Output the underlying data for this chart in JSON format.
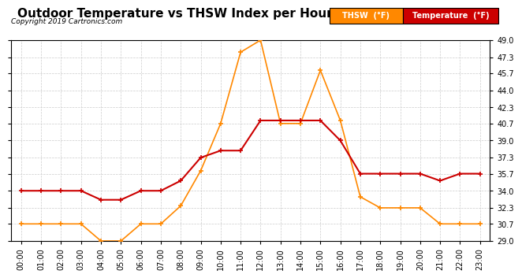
{
  "title": "Outdoor Temperature vs THSW Index per Hour (24 Hours)  20191102",
  "copyright": "Copyright 2019 Cartronics.com",
  "hours": [
    "00:00",
    "01:00",
    "02:00",
    "03:00",
    "04:00",
    "05:00",
    "06:00",
    "07:00",
    "08:00",
    "09:00",
    "10:00",
    "11:00",
    "12:00",
    "13:00",
    "14:00",
    "15:00",
    "16:00",
    "17:00",
    "18:00",
    "19:00",
    "20:00",
    "21:00",
    "22:00",
    "23:00"
  ],
  "temperature": [
    34.0,
    34.0,
    34.0,
    34.0,
    33.1,
    33.1,
    34.0,
    34.0,
    35.0,
    37.3,
    38.0,
    38.0,
    41.0,
    41.0,
    41.0,
    41.0,
    39.0,
    35.7,
    35.7,
    35.7,
    35.7,
    35.0,
    35.7,
    35.7
  ],
  "thsw": [
    30.7,
    30.7,
    30.7,
    30.7,
    29.0,
    29.0,
    30.7,
    30.7,
    32.5,
    36.0,
    40.7,
    47.8,
    49.0,
    40.7,
    40.7,
    46.0,
    41.0,
    33.4,
    32.3,
    32.3,
    32.3,
    30.7,
    30.7,
    30.7
  ],
  "temp_color": "#cc0000",
  "thsw_color": "#ff8800",
  "ylim_min": 29.0,
  "ylim_max": 49.0,
  "yticks": [
    29.0,
    30.7,
    32.3,
    34.0,
    35.7,
    37.3,
    39.0,
    40.7,
    42.3,
    44.0,
    45.7,
    47.3,
    49.0
  ],
  "background_color": "#ffffff",
  "grid_color": "#cccccc",
  "title_fontsize": 11,
  "legend_thsw_bg": "#ff8800",
  "legend_temp_bg": "#cc0000",
  "legend_text_color": "#ffffff",
  "legend_thsw_label": "THSW  (°F)",
  "legend_temp_label": "Temperature  (°F)"
}
